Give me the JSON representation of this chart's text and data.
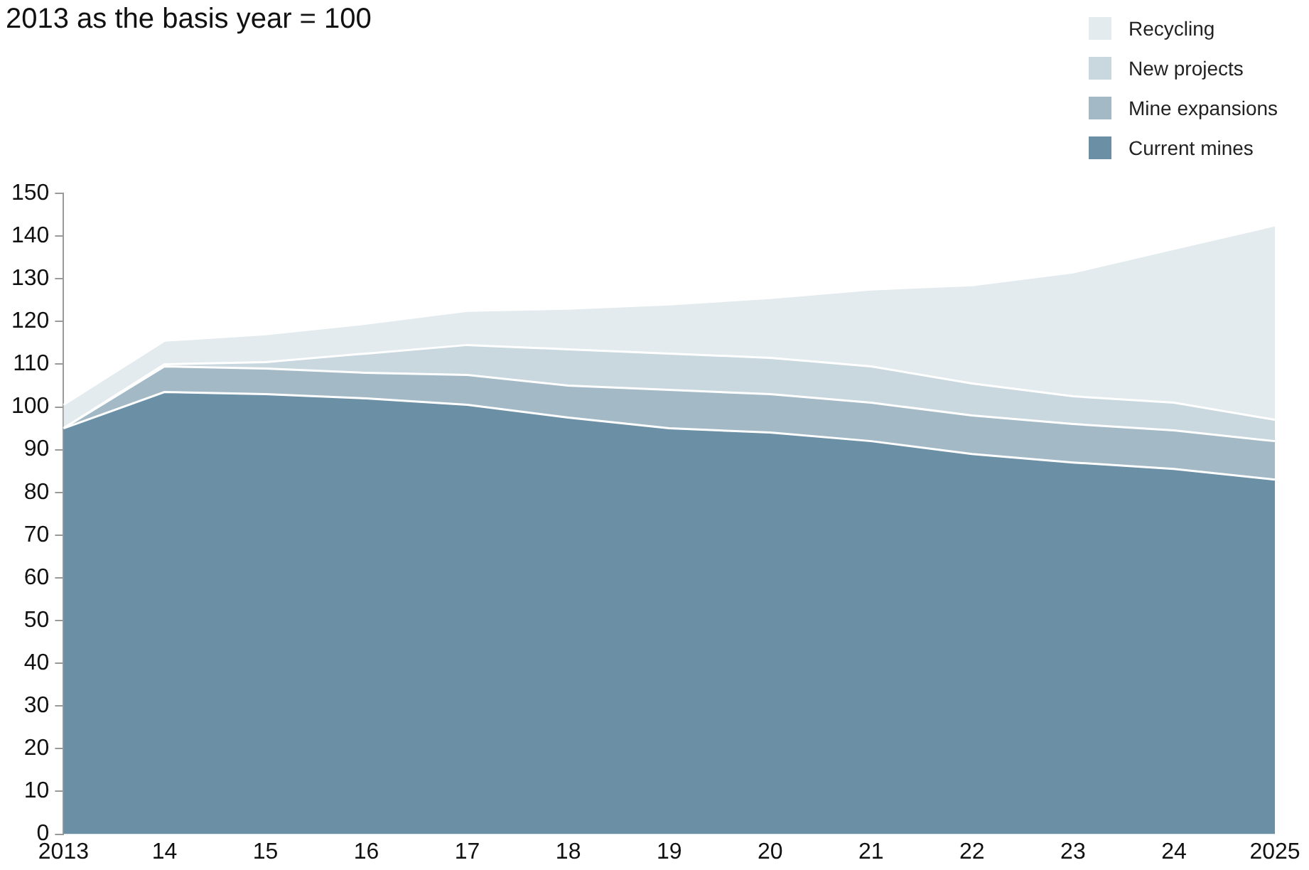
{
  "chart_data": {
    "type": "area",
    "title": "2013 as the basis year = 100",
    "stacked": true,
    "legend": "top right",
    "grid": false,
    "categories": [
      "2013",
      "14",
      "15",
      "16",
      "17",
      "18",
      "19",
      "20",
      "21",
      "22",
      "23",
      "24",
      "2025"
    ],
    "ylim": [
      0,
      150
    ],
    "yticks": [
      0,
      10,
      20,
      30,
      40,
      50,
      60,
      70,
      80,
      90,
      100,
      110,
      120,
      130,
      140,
      150
    ],
    "series": [
      {
        "name": "Current mines",
        "color": "#6b8fa5",
        "values": [
          95,
          103.5,
          103,
          102,
          100.5,
          97.5,
          95,
          94,
          92,
          89,
          87,
          85.5,
          83
        ]
      },
      {
        "name": "Mine expansions",
        "color": "#a3bac6",
        "values": [
          0,
          6,
          6,
          6,
          7,
          7.5,
          9,
          9,
          9,
          9,
          9,
          9,
          9
        ]
      },
      {
        "name": "New projects",
        "color": "#c9d7df",
        "values": [
          0,
          0.5,
          1.5,
          4.5,
          7,
          8.5,
          8.5,
          8.5,
          8.5,
          7.5,
          6.5,
          6.5,
          5
        ]
      },
      {
        "name": "Recycling",
        "color": "#e3ebee",
        "values": [
          5.5,
          5.5,
          6.5,
          7,
          8,
          9.5,
          11.5,
          14,
          18,
          23,
          29,
          36,
          45.5
        ]
      }
    ]
  }
}
